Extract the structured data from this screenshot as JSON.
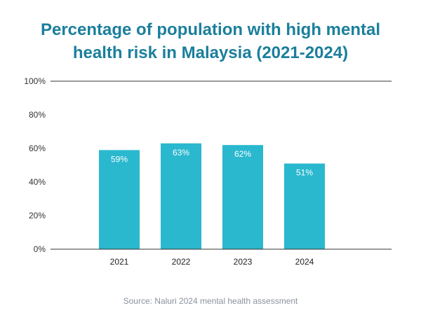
{
  "title": {
    "line1": "Percentage of population with high mental",
    "line2": "health risk in Malaysia (2021-2024)"
  },
  "source": "Source: Naluri 2024 mental health assessment",
  "colors": {
    "title": "#1b7f9c",
    "bar": "#29b8ce",
    "axis": "#333333",
    "source": "#8a939d"
  },
  "chart_data": {
    "type": "bar",
    "title": "Percentage of population with high mental health risk in Malaysia (2021-2024)",
    "categories": [
      "2021",
      "2022",
      "2023",
      "2024"
    ],
    "values": [
      59,
      63,
      62,
      51
    ],
    "value_labels": [
      "59%",
      "63%",
      "62%",
      "51%"
    ],
    "xlabel": "",
    "ylabel": "",
    "ylim": [
      0,
      100
    ],
    "yticks": [
      0,
      20,
      40,
      60,
      80,
      100
    ],
    "ytick_labels": [
      "0%",
      "20%",
      "40%",
      "60%",
      "80%",
      "100%"
    ],
    "grid": false,
    "legend": "none"
  }
}
